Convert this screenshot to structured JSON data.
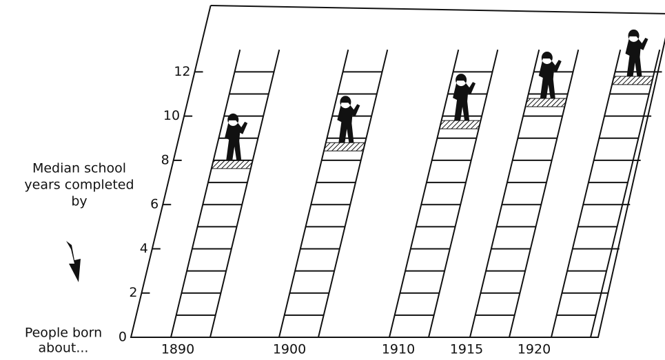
{
  "chart_data": {
    "type": "ladder",
    "y_label": [
      "Median school",
      "years completed",
      "by"
    ],
    "x_label": [
      "People born",
      "about..."
    ],
    "categories": [
      "1890",
      "1900",
      "1910",
      "1915",
      "1920"
    ],
    "values": [
      8.0,
      8.8,
      9.8,
      10.8,
      11.8
    ],
    "ylim": [
      0,
      15
    ],
    "yticks": [
      0,
      2,
      4,
      6,
      8,
      10,
      12
    ],
    "color": "#111111"
  }
}
